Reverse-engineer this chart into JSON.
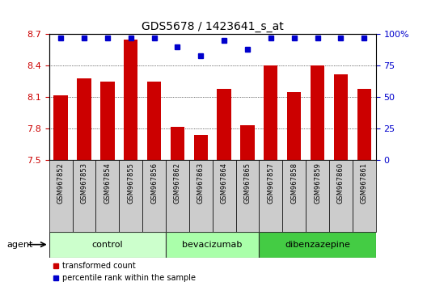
{
  "title": "GDS5678 / 1423641_s_at",
  "samples": [
    "GSM967852",
    "GSM967853",
    "GSM967854",
    "GSM967855",
    "GSM967856",
    "GSM967862",
    "GSM967863",
    "GSM967864",
    "GSM967865",
    "GSM967857",
    "GSM967858",
    "GSM967859",
    "GSM967860",
    "GSM967861"
  ],
  "bar_values": [
    8.12,
    8.28,
    8.25,
    8.65,
    8.25,
    7.82,
    7.74,
    8.18,
    7.83,
    8.4,
    8.15,
    8.4,
    8.32,
    8.18
  ],
  "percentile_values": [
    97,
    97,
    97,
    97,
    97,
    90,
    83,
    95,
    88,
    97,
    97,
    97,
    97,
    97
  ],
  "ylim_left": [
    7.5,
    8.7
  ],
  "ylim_right": [
    0,
    100
  ],
  "yticks_left": [
    7.5,
    7.8,
    8.1,
    8.4,
    8.7
  ],
  "yticks_right": [
    0,
    25,
    50,
    75,
    100
  ],
  "bar_color": "#cc0000",
  "dot_color": "#0000cc",
  "groups": [
    {
      "label": "control",
      "start": 0,
      "end": 5,
      "color": "#ccffcc"
    },
    {
      "label": "bevacizumab",
      "start": 5,
      "end": 9,
      "color": "#aaffaa"
    },
    {
      "label": "dibenzazepine",
      "start": 9,
      "end": 14,
      "color": "#44cc44"
    }
  ],
  "agent_label": "agent",
  "legend_bar_label": "transformed count",
  "legend_dot_label": "percentile rank within the sample",
  "tick_label_color_left": "#cc0000",
  "tick_label_color_right": "#0000cc",
  "sample_box_color": "#cccccc",
  "group_border_color": "#333333",
  "fig_bg": "#ffffff"
}
